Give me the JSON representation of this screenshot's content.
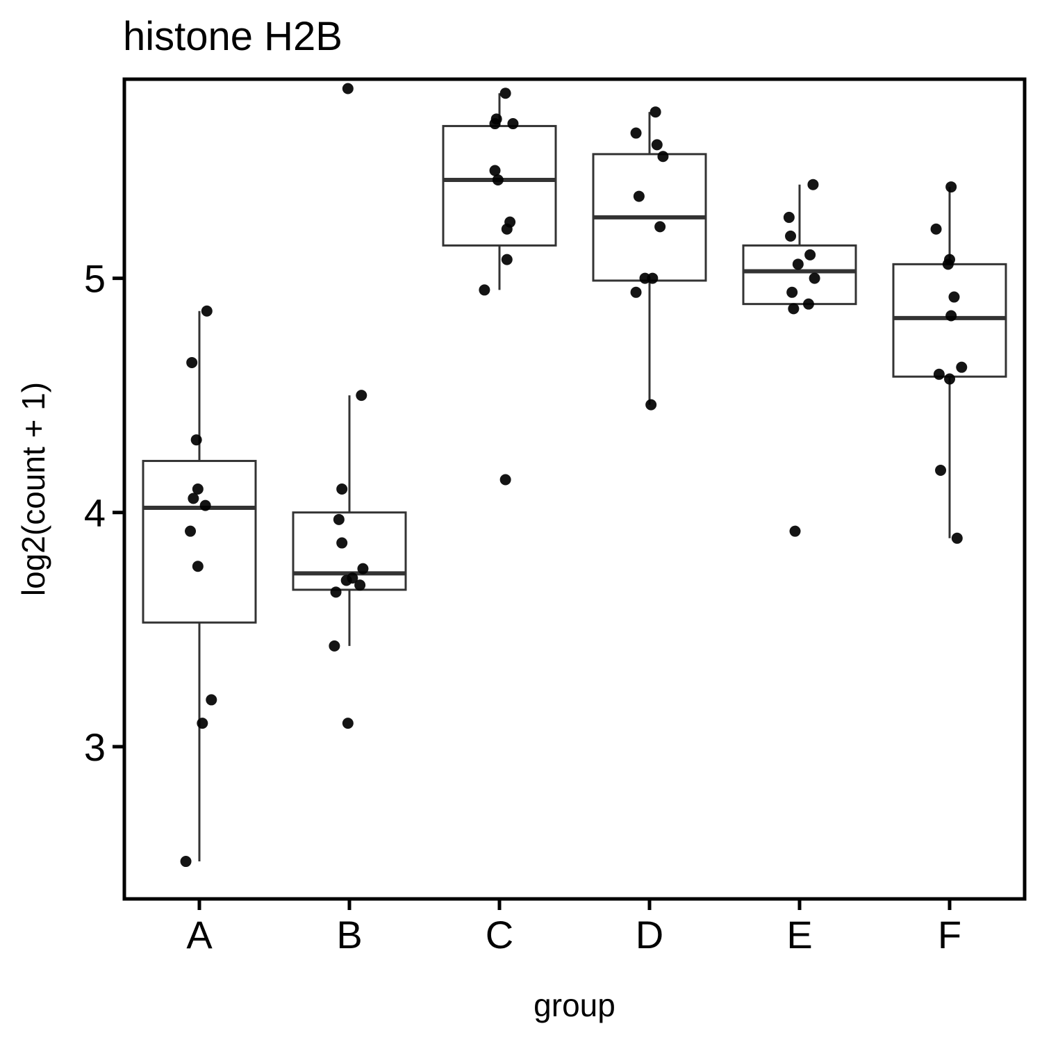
{
  "chart_data": {
    "type": "box",
    "title": "histone H2B",
    "xlabel": "group",
    "ylabel": "log2(count + 1)",
    "categories": [
      "A",
      "B",
      "C",
      "D",
      "E",
      "F"
    ],
    "ylim": [
      2.35,
      5.85
    ],
    "yticks": [
      3,
      4,
      5
    ],
    "grid": false,
    "legend": "none",
    "boxes": [
      {
        "group": "A",
        "whisker_low": 2.51,
        "q1": 3.53,
        "median": 4.02,
        "q3": 4.22,
        "whisker_high": 4.86
      },
      {
        "group": "B",
        "whisker_low": 3.43,
        "q1": 3.67,
        "median": 3.74,
        "q3": 4.0,
        "whisker_high": 4.5
      },
      {
        "group": "C",
        "whisker_low": 4.95,
        "q1": 5.14,
        "median": 5.42,
        "q3": 5.65,
        "whisker_high": 5.79
      },
      {
        "group": "D",
        "whisker_low": 4.46,
        "q1": 4.99,
        "median": 5.26,
        "q3": 5.53,
        "whisker_high": 5.71
      },
      {
        "group": "E",
        "whisker_low": 4.89,
        "q1": 4.89,
        "median": 5.03,
        "q3": 5.14,
        "whisker_high": 5.4
      },
      {
        "group": "F",
        "whisker_low": 3.89,
        "q1": 4.58,
        "median": 4.83,
        "q3": 5.06,
        "whisker_high": 5.39
      }
    ],
    "points": [
      {
        "group": "A",
        "values": [
          4.86,
          4.64,
          4.31,
          4.1,
          4.06,
          4.03,
          3.92,
          3.77,
          3.2,
          3.1,
          2.51
        ],
        "jitter": [
          0.05,
          -0.05,
          -0.02,
          -0.01,
          -0.04,
          0.04,
          -0.06,
          -0.01,
          0.08,
          0.02,
          -0.09
        ]
      },
      {
        "group": "B",
        "values": [
          5.81,
          4.5,
          4.1,
          3.97,
          3.87,
          3.76,
          3.72,
          3.71,
          3.69,
          3.66,
          3.43,
          3.1
        ],
        "jitter": [
          -0.01,
          0.08,
          -0.05,
          -0.07,
          -0.05,
          0.09,
          0.02,
          -0.02,
          0.07,
          -0.09,
          -0.1,
          -0.01
        ]
      },
      {
        "group": "C",
        "values": [
          5.79,
          5.68,
          5.66,
          5.66,
          5.46,
          5.42,
          5.24,
          5.21,
          5.08,
          4.95,
          4.14
        ],
        "jitter": [
          0.04,
          -0.02,
          -0.03,
          0.09,
          -0.03,
          -0.01,
          0.07,
          0.05,
          0.05,
          -0.1,
          0.04
        ]
      },
      {
        "group": "D",
        "values": [
          5.71,
          5.62,
          5.57,
          5.52,
          5.35,
          5.22,
          5.0,
          5.0,
          4.94,
          4.46
        ],
        "jitter": [
          0.04,
          -0.09,
          0.05,
          0.09,
          -0.07,
          0.07,
          0.02,
          -0.03,
          -0.09,
          0.01
        ]
      },
      {
        "group": "E",
        "values": [
          5.4,
          5.26,
          5.18,
          5.1,
          5.06,
          5.0,
          4.94,
          4.89,
          4.87,
          3.92
        ],
        "jitter": [
          0.09,
          -0.07,
          -0.06,
          0.07,
          -0.01,
          0.1,
          -0.05,
          0.06,
          -0.04,
          -0.03
        ]
      },
      {
        "group": "F",
        "values": [
          5.39,
          5.21,
          5.08,
          5.06,
          4.92,
          4.84,
          4.62,
          4.59,
          4.57,
          4.18,
          3.89
        ],
        "jitter": [
          0.01,
          -0.09,
          0.0,
          -0.01,
          0.03,
          0.01,
          0.08,
          -0.07,
          0.0,
          -0.06,
          0.05
        ]
      }
    ]
  }
}
